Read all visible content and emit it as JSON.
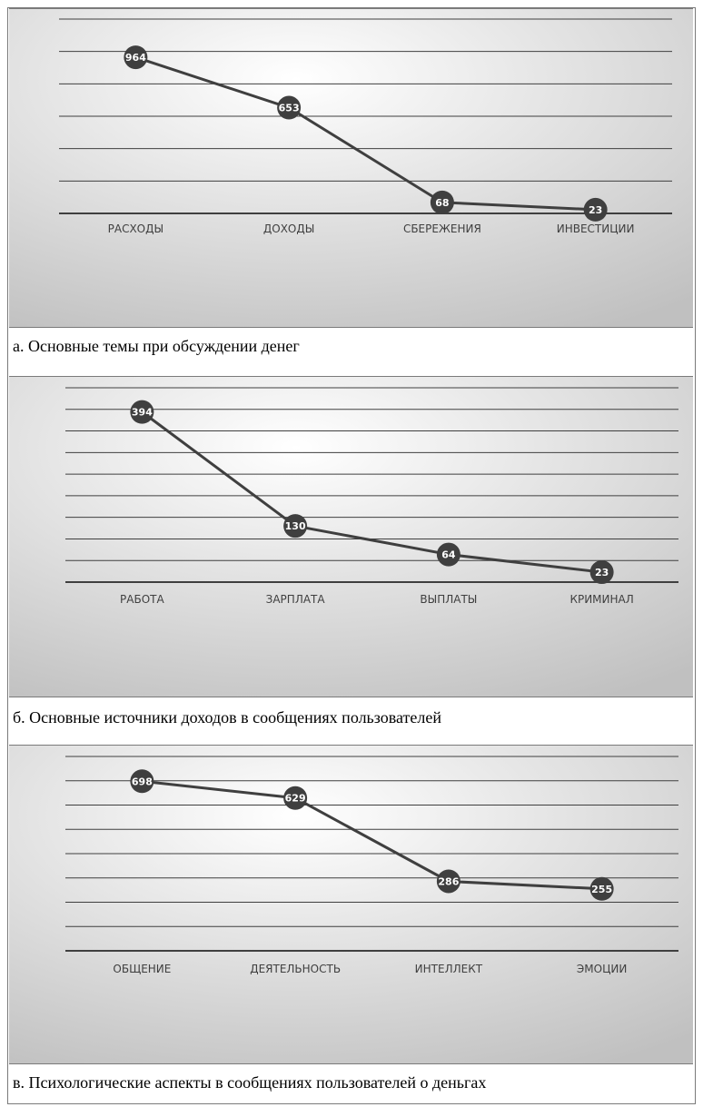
{
  "colors": {
    "line": "#3f3f3f",
    "marker": "#3f3f3f",
    "marker_text": "#ffffff",
    "grid": "#3f3f3f",
    "axis_text": "#3f3f3f",
    "bg_light": "#ffffff",
    "bg_dark": "#c0c0c0"
  },
  "captions": {
    "a": "а. Основные темы при обсуждении денег",
    "b": "б. Основные источники доходов в сообщениях пользователей",
    "c": "в. Психологические аспекты в сообщениях пользователей о деньгах"
  },
  "chart_data": [
    {
      "type": "line",
      "categories": [
        "РАСХОДЫ",
        "ДОХОДЫ",
        "СБЕРЕЖЕНИЯ",
        "ИНВЕСТИЦИИ"
      ],
      "values": [
        964,
        653,
        68,
        23
      ],
      "data_labels": [
        "964",
        "653",
        "68",
        "23"
      ],
      "ylim": [
        0,
        1200
      ],
      "grid_step": 200,
      "grid": true,
      "axis_labels_shown": false
    },
    {
      "type": "line",
      "categories": [
        "РАБОТА",
        "ЗАРПЛАТА",
        "ВЫПЛАТЫ",
        "КРИМИНАЛ"
      ],
      "values": [
        394,
        130,
        64,
        23
      ],
      "data_labels": [
        "394",
        "130",
        "64",
        "23"
      ],
      "ylim": [
        0,
        450
      ],
      "grid_step": 50,
      "grid": true,
      "axis_labels_shown": false
    },
    {
      "type": "line",
      "categories": [
        "ОБЩЕНИЕ",
        "ДЕЯТЕЛЬНОСТЬ",
        "ИНТЕЛЛЕКТ",
        "ЭМОЦИИ"
      ],
      "values": [
        698,
        629,
        286,
        255
      ],
      "data_labels": [
        "698",
        "629",
        "286",
        "255"
      ],
      "ylim": [
        0,
        800
      ],
      "grid_step": 100,
      "grid": true,
      "axis_labels_shown": false
    }
  ]
}
